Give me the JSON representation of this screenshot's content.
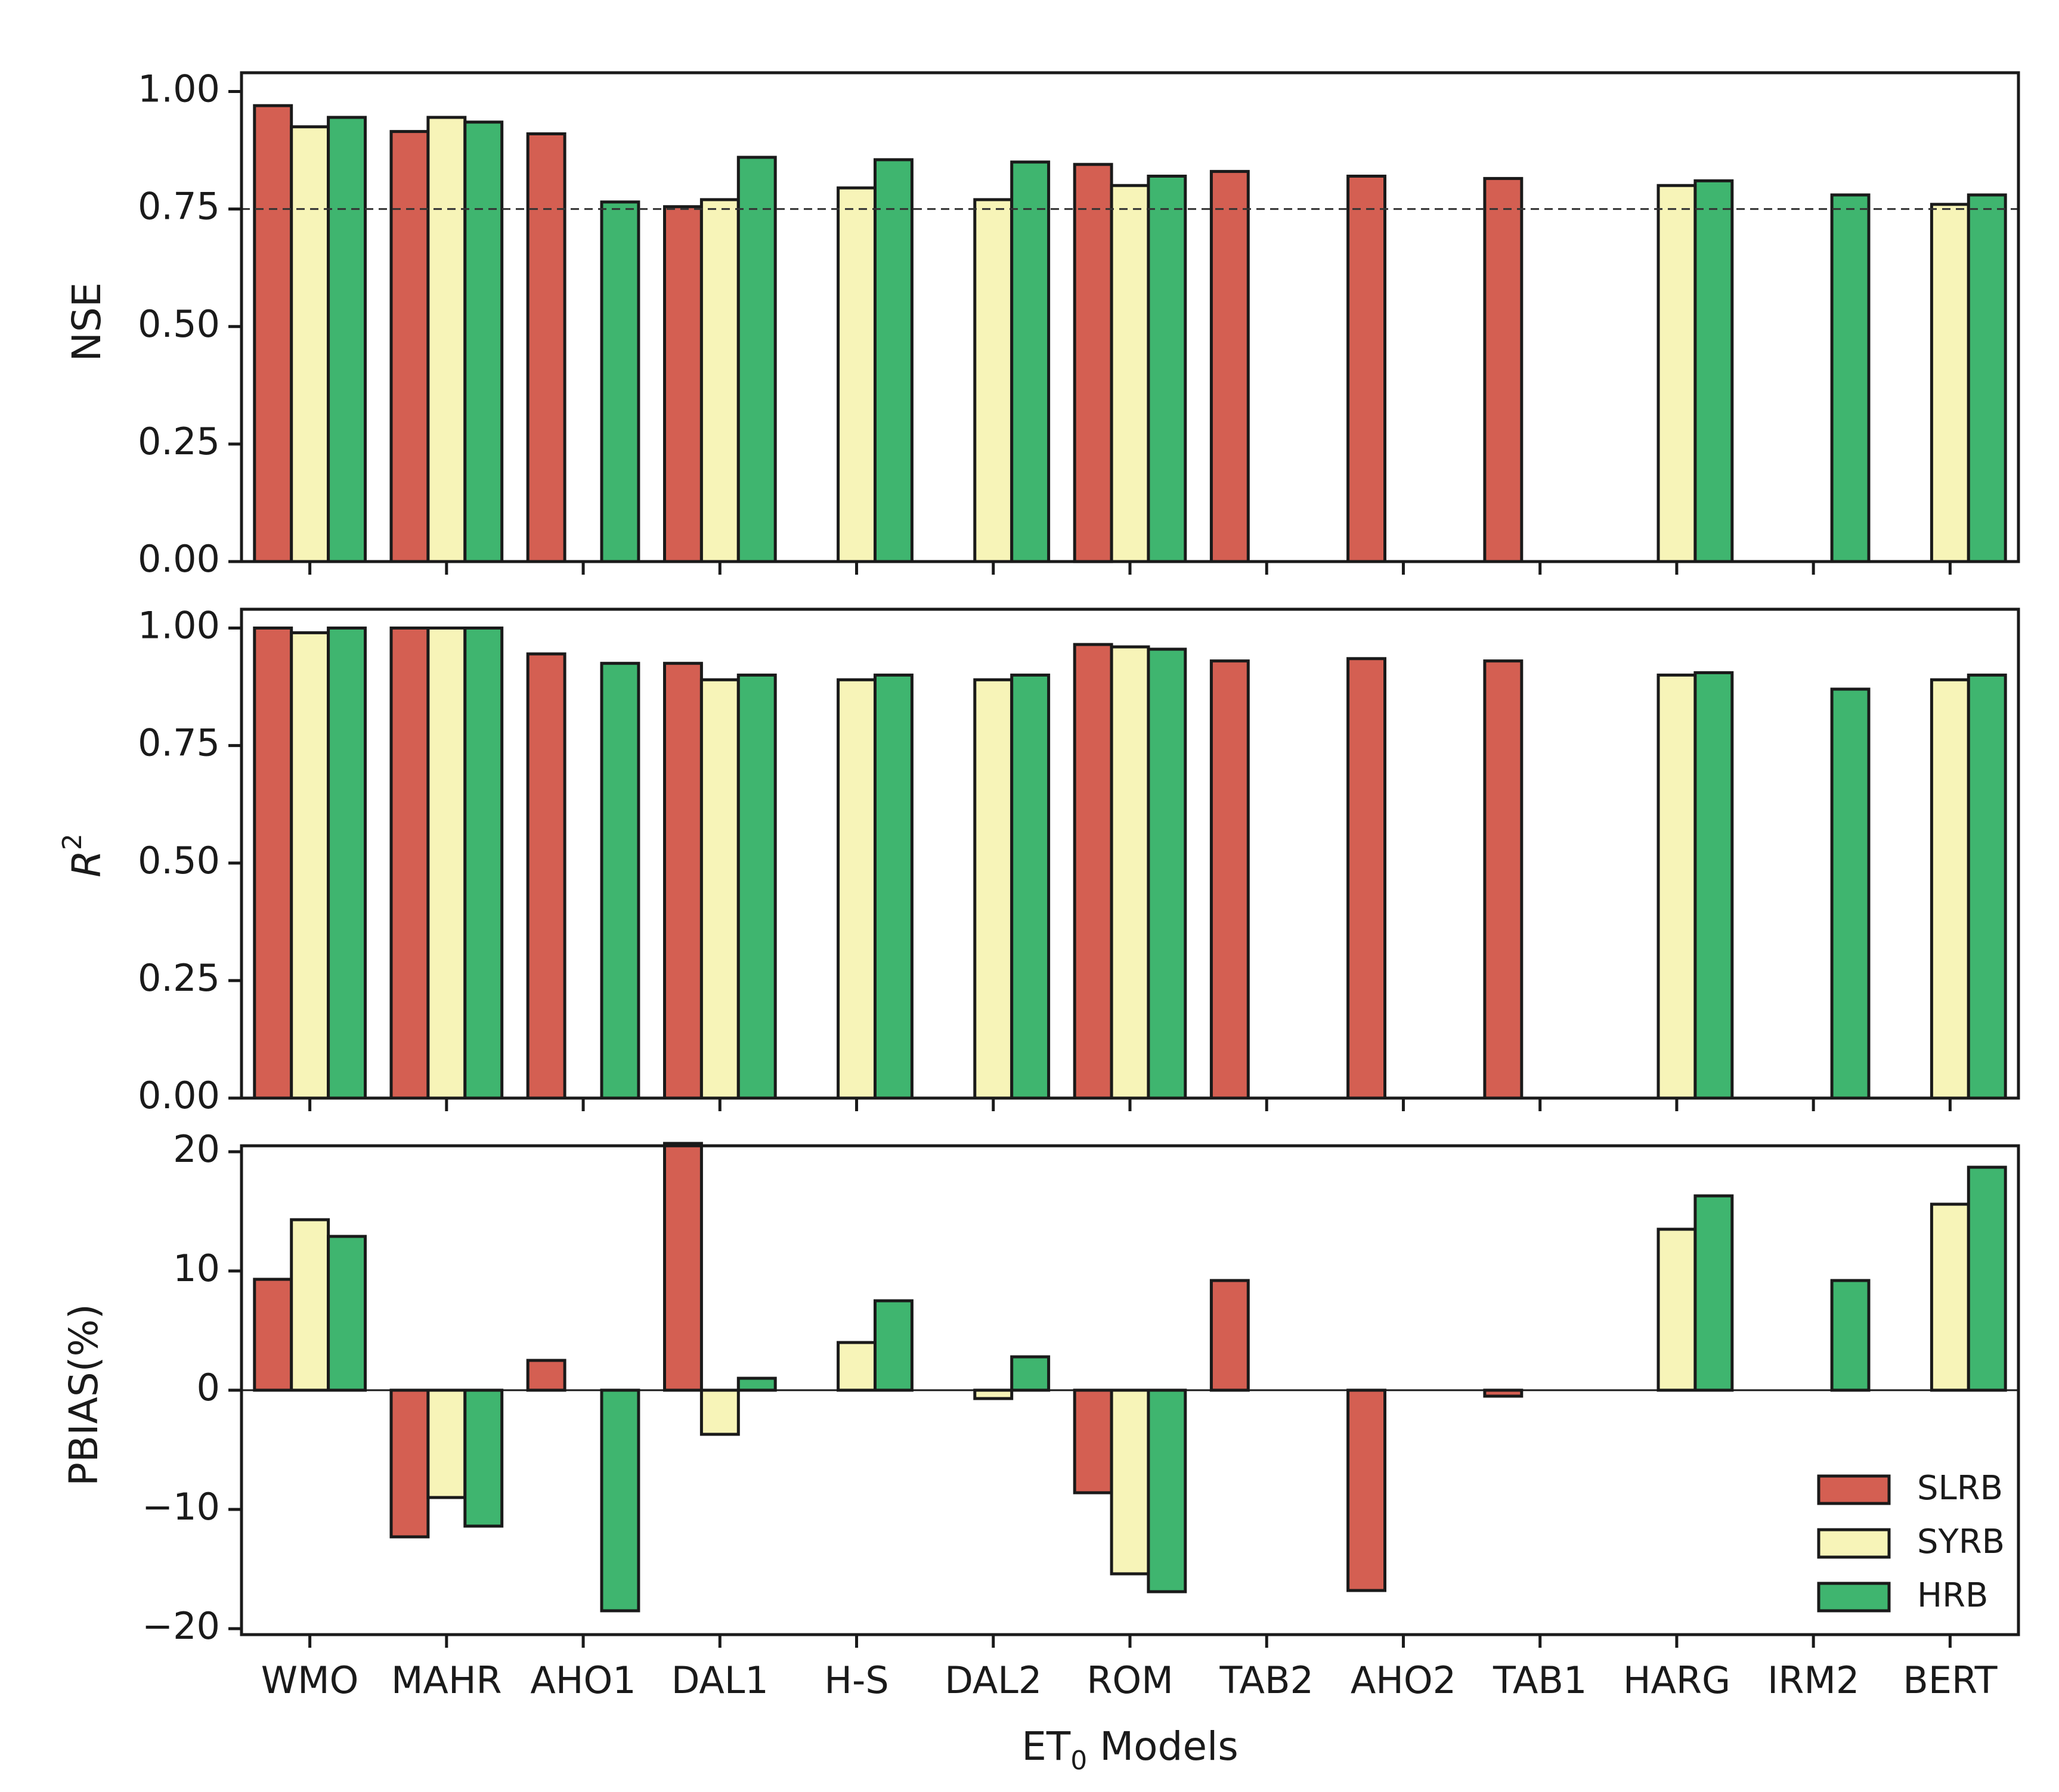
{
  "colors": {
    "SLRB": "#d45f52",
    "SYRB": "#f7f4b8",
    "HRB": "#3fb56f",
    "edge": "#1a1a1a",
    "reference_line": "#333333"
  },
  "chart_data": [
    {
      "type": "bar",
      "panel": "NSE",
      "ylabel": "NSE",
      "ylim": [
        0,
        1.0
      ],
      "yticks": [
        "0.00",
        "0.25",
        "0.50",
        "0.75",
        "1.00"
      ],
      "ytick_values": [
        0,
        0.25,
        0.5,
        0.75,
        1.0
      ],
      "reference_line": 0.75,
      "categories": [
        "WMO",
        "MAHR",
        "AHO1",
        "DAL1",
        "H-S",
        "DAL2",
        "ROM",
        "TAB2",
        "AHO2",
        "TAB1",
        "HARG",
        "IRM2",
        "BERT"
      ],
      "series": [
        {
          "name": "SLRB",
          "values": [
            0.97,
            0.915,
            0.91,
            0.755,
            null,
            null,
            0.845,
            0.83,
            0.82,
            0.815,
            null,
            null,
            null
          ]
        },
        {
          "name": "SYRB",
          "values": [
            0.925,
            0.945,
            null,
            0.77,
            0.795,
            0.77,
            0.8,
            null,
            null,
            null,
            0.8,
            null,
            0.76
          ]
        },
        {
          "name": "HRB",
          "values": [
            0.945,
            0.935,
            0.765,
            0.86,
            0.855,
            0.85,
            0.82,
            null,
            null,
            null,
            0.81,
            0.78,
            0.78
          ]
        }
      ]
    },
    {
      "type": "bar",
      "panel": "R2",
      "ylabel": "R",
      "ylabel_superscript": "2",
      "ylim": [
        0,
        1.0
      ],
      "yticks": [
        "0.00",
        "0.25",
        "0.50",
        "0.75",
        "1.00"
      ],
      "ytick_values": [
        0,
        0.25,
        0.5,
        0.75,
        1.0
      ],
      "categories": [
        "WMO",
        "MAHR",
        "AHO1",
        "DAL1",
        "H-S",
        "DAL2",
        "ROM",
        "TAB2",
        "AHO2",
        "TAB1",
        "HARG",
        "IRM2",
        "BERT"
      ],
      "series": [
        {
          "name": "SLRB",
          "values": [
            1.0,
            1.0,
            0.945,
            0.925,
            null,
            null,
            0.965,
            0.93,
            0.935,
            0.93,
            null,
            null,
            null
          ]
        },
        {
          "name": "SYRB",
          "values": [
            0.99,
            1.0,
            null,
            0.89,
            0.89,
            0.89,
            0.96,
            null,
            null,
            null,
            0.9,
            null,
            0.89
          ]
        },
        {
          "name": "HRB",
          "values": [
            1.0,
            1.0,
            0.925,
            0.9,
            0.9,
            0.9,
            0.955,
            null,
            null,
            null,
            0.905,
            0.87,
            0.9
          ]
        }
      ]
    },
    {
      "type": "bar",
      "panel": "PBIAS",
      "ylabel": "PBIAS(%)",
      "ylim": [
        -20.5,
        20.5
      ],
      "yticks": [
        "−20",
        "−10",
        "0",
        "10",
        "20"
      ],
      "ytick_values": [
        -20,
        -10,
        0,
        10,
        20
      ],
      "zero_line": true,
      "xlabel": "ET",
      "xlabel_subscript": "0",
      "xlabel_suffix": " Models",
      "categories": [
        "WMO",
        "MAHR",
        "AHO1",
        "DAL1",
        "H-S",
        "DAL2",
        "ROM",
        "TAB2",
        "AHO2",
        "TAB1",
        "HARG",
        "IRM2",
        "BERT"
      ],
      "series": [
        {
          "name": "SLRB",
          "values": [
            9.3,
            -12.3,
            2.5,
            20.7,
            null,
            null,
            -8.6,
            9.2,
            -16.8,
            -0.5,
            null,
            null,
            null
          ]
        },
        {
          "name": "SYRB",
          "values": [
            14.3,
            -9.0,
            null,
            -3.7,
            4.0,
            -0.7,
            -15.4,
            null,
            null,
            null,
            13.5,
            null,
            15.6
          ]
        },
        {
          "name": "HRB",
          "values": [
            12.9,
            -11.4,
            -18.5,
            1.0,
            7.5,
            2.8,
            -16.9,
            null,
            null,
            null,
            16.3,
            9.2,
            18.7
          ]
        }
      ],
      "legend": {
        "position": "lower-right",
        "entries": [
          "SLRB",
          "SYRB",
          "HRB"
        ]
      }
    }
  ]
}
